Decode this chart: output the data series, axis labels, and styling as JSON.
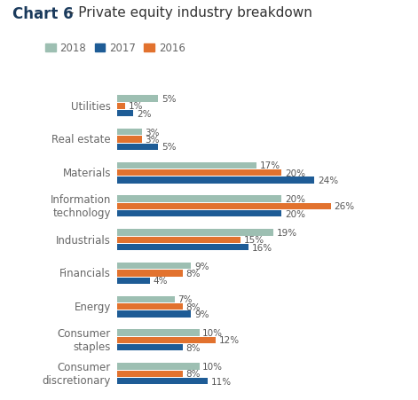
{
  "title_bold": "Chart 6",
  "title_rest": " - Private equity industry breakdown",
  "categories": [
    "Utilities",
    "Real estate",
    "Materials",
    "Information\ntechnology",
    "Industrials",
    "Financials",
    "Energy",
    "Consumer\nstaples",
    "Consumer\ndiscretionary"
  ],
  "series": {
    "2018": [
      5,
      3,
      17,
      20,
      19,
      9,
      7,
      10,
      10
    ],
    "2017": [
      2,
      5,
      24,
      20,
      16,
      4,
      9,
      8,
      11
    ],
    "2016": [
      1,
      3,
      20,
      26,
      15,
      8,
      8,
      12,
      8
    ]
  },
  "bar_order": [
    "2018",
    "2016",
    "2017"
  ],
  "colors": {
    "2018": "#9dbfb2",
    "2016": "#e2722e",
    "2017": "#1e5c96"
  },
  "legend_order": [
    "2018",
    "2017",
    "2016"
  ],
  "xlim": [
    0,
    30
  ],
  "background_color": "#ffffff",
  "bar_height": 0.22,
  "label_fontsize": 7.5,
  "tick_fontsize": 8.5,
  "title_fontsize_bold": 12,
  "title_fontsize_rest": 11,
  "title_color_bold": "#1a3a5c",
  "title_color_rest": "#333333",
  "label_color": "#555555",
  "tick_color": "#666666"
}
